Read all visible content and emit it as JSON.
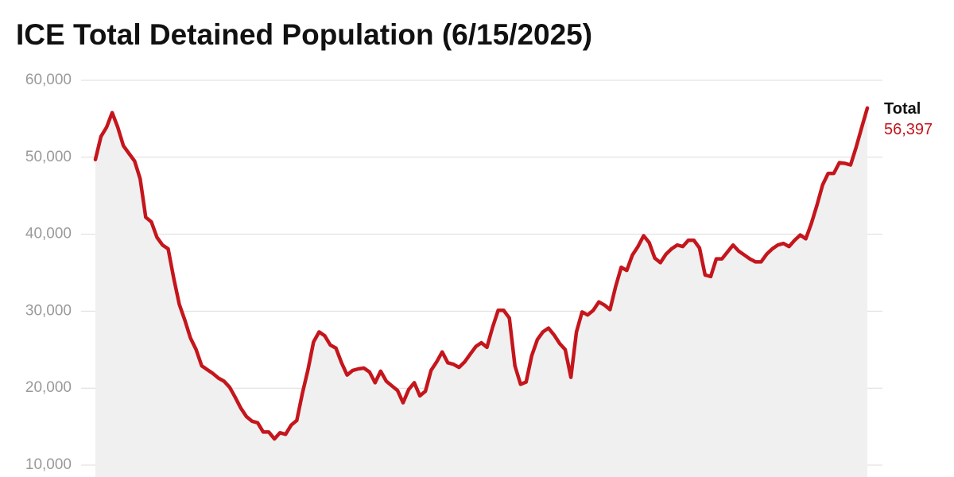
{
  "chart_data": {
    "type": "area-line",
    "title": "ICE Total Detained Population (6/15/2025)",
    "series": [
      {
        "name": "Total",
        "color": "#c4161c",
        "end_label": "56,397",
        "values": [
          49700,
          52700,
          53900,
          55800,
          53900,
          51500,
          50500,
          49500,
          47200,
          42200,
          41600,
          39600,
          38600,
          38100,
          34300,
          30900,
          28800,
          26500,
          25000,
          22900,
          22400,
          21900,
          21300,
          20900,
          20100,
          18800,
          17400,
          16300,
          15700,
          15500,
          14300,
          14300,
          13400,
          14200,
          14000,
          15200,
          15800,
          19300,
          22400,
          26000,
          27300,
          26800,
          25600,
          25200,
          23300,
          21700,
          22300,
          22500,
          22600,
          22100,
          20700,
          22200,
          20900,
          20300,
          19700,
          18100,
          19800,
          20700,
          19000,
          19600,
          22300,
          23400,
          24700,
          23300,
          23100,
          22700,
          23400,
          24400,
          25400,
          25900,
          25300,
          27900,
          30100,
          30100,
          29100,
          22900,
          20500,
          20800,
          24200,
          26300,
          27300,
          27800,
          26900,
          25800,
          25000,
          21400,
          27300,
          29900,
          29500,
          30100,
          31200,
          30800,
          30200,
          33200,
          35700,
          35300,
          37300,
          38400,
          39800,
          38900,
          36900,
          36300,
          37400,
          38100,
          38600,
          38400,
          39200,
          39200,
          38200,
          34700,
          34500,
          36800,
          36800,
          37700,
          38600,
          37800,
          37300,
          36800,
          36400,
          36400,
          37400,
          38100,
          38600,
          38800,
          38400,
          39200,
          39900,
          39400,
          41400,
          43800,
          46400,
          47900,
          47900,
          49300,
          49200,
          49000,
          51300,
          53900,
          56397
        ]
      }
    ],
    "area_color": "#f0f0f0",
    "ylim": [
      8450,
      60000
    ],
    "yticks": [
      {
        "value": 10000,
        "label": "10,000"
      },
      {
        "value": 20000,
        "label": "20,000"
      },
      {
        "value": 30000,
        "label": "30,000"
      },
      {
        "value": 40000,
        "label": "40,000"
      },
      {
        "value": 50000,
        "label": "50,000"
      },
      {
        "value": 60000,
        "label": "60,000"
      }
    ],
    "grid": true
  }
}
